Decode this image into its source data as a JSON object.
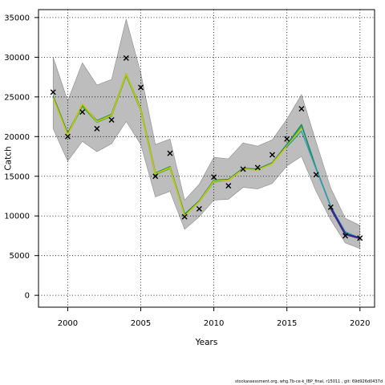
{
  "footer": "stockassessment.org, whg.7b-ce-k_IBP_final, r15011 , git: 69d926d0437d",
  "chart_data": {
    "type": "line",
    "xlabel": "Years",
    "ylabel": "Catch",
    "xlim": [
      1998,
      2021
    ],
    "ylim": [
      -1500,
      36000
    ],
    "xticks": [
      2000,
      2005,
      2010,
      2015,
      2020
    ],
    "yticks": [
      0,
      5000,
      10000,
      15000,
      20000,
      25000,
      30000,
      35000
    ],
    "grid": true,
    "band": {
      "x": [
        1999,
        2000,
        2001,
        2002,
        2003,
        2004,
        2005,
        2006,
        2007,
        2008,
        2009,
        2010,
        2011,
        2012,
        2013,
        2014,
        2015,
        2016,
        2017,
        2018,
        2019,
        2020
      ],
      "upper": [
        30000,
        24500,
        29300,
        26500,
        27200,
        34800,
        28000,
        19000,
        19700,
        12000,
        14000,
        17400,
        17200,
        19200,
        18800,
        19600,
        22200,
        25300,
        19300,
        13500,
        9700,
        8800
      ],
      "lower": [
        21000,
        16900,
        19400,
        18100,
        19100,
        21900,
        19000,
        12400,
        13100,
        8300,
        9900,
        12000,
        12100,
        13600,
        13400,
        14100,
        16300,
        17500,
        13100,
        9500,
        6600,
        5900
      ]
    },
    "series": [
      {
        "color": "#4caf4c",
        "x": [
          1999,
          2000,
          2001,
          2002,
          2003,
          2004,
          2005,
          2006,
          2007,
          2008,
          2009,
          2010,
          2011,
          2012,
          2013,
          2014,
          2015,
          2016
        ],
        "values": [
          25000,
          20300,
          23800,
          21800,
          22600,
          27700,
          23300,
          15200,
          16000,
          10100,
          11800,
          14300,
          14500,
          15900,
          15800,
          16600,
          18900,
          21200
        ]
      },
      {
        "color": "#1a8a5a",
        "x": [
          1999,
          2000,
          2001,
          2002,
          2003,
          2004,
          2005,
          2006,
          2007,
          2008,
          2009,
          2010,
          2011,
          2012,
          2013,
          2014,
          2015,
          2016,
          2017,
          2018,
          2019,
          2020
        ],
        "values": [
          25100,
          20400,
          24000,
          22000,
          22800,
          27900,
          23500,
          15400,
          16200,
          10200,
          11900,
          14500,
          14600,
          16000,
          15900,
          16700,
          19000,
          21500,
          16000,
          11200,
          7900,
          7200
        ]
      },
      {
        "color": "#c8c800",
        "x": [
          1999,
          2000,
          2001,
          2002,
          2003,
          2004,
          2005,
          2006,
          2007,
          2008,
          2009,
          2010,
          2011,
          2012,
          2013,
          2014,
          2015,
          2016
        ],
        "values": [
          24900,
          20200,
          24100,
          21900,
          22700,
          27900,
          23400,
          15300,
          16100,
          10000,
          11800,
          14400,
          14500,
          15900,
          15800,
          16600,
          18800,
          21000
        ]
      },
      {
        "color": "#2a9db5",
        "x": [
          2015,
          2016,
          2017,
          2018,
          2019,
          2020
        ],
        "values": [
          18700,
          20700,
          15900,
          11200,
          8000,
          7200
        ]
      },
      {
        "color": "#3a2a8a",
        "x": [
          2018,
          2019,
          2020
        ],
        "values": [
          11000,
          7700,
          7200
        ]
      }
    ],
    "observed": {
      "x": [
        1999,
        2000,
        2001,
        2002,
        2003,
        2004,
        2005,
        2006,
        2007,
        2008,
        2009,
        2010,
        2011,
        2012,
        2013,
        2014,
        2015,
        2016,
        2017,
        2018,
        2019,
        2020
      ],
      "values": [
        25600,
        20000,
        23100,
        21000,
        22100,
        29900,
        26200,
        15000,
        17900,
        9900,
        10900,
        14900,
        13800,
        15900,
        16100,
        17700,
        19700,
        23500,
        15200,
        11100,
        7500,
        7200
      ]
    }
  }
}
